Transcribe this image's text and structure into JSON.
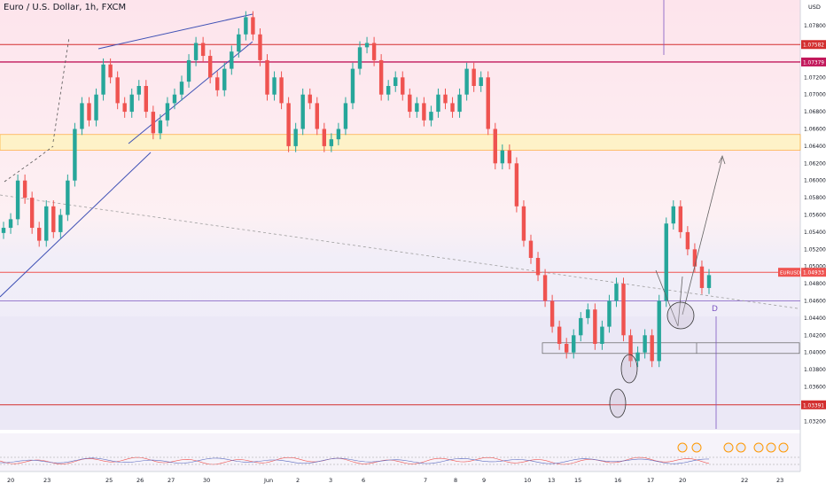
{
  "header": {
    "title": "Euro / U.S. Dollar, 1h, FXCM",
    "currency": "USD"
  },
  "colors": {
    "up": "#26a69a",
    "down": "#ef5350",
    "resistance_line": "#c2185b",
    "support_zone": "#fff3c4",
    "trendline": "#3f51b5",
    "zone_fill": "#ede7f6"
  },
  "chart_data": {
    "type": "candlestick",
    "symbol": "EURUSD",
    "timeframe": "1h",
    "ylim": [
      1.031,
      1.081
    ],
    "y_ticks": [
      "1.07800",
      "1.07600",
      "1.07400",
      "1.07200",
      "1.07000",
      "1.06800",
      "1.06600",
      "1.06400",
      "1.06200",
      "1.06000",
      "1.05800",
      "1.05600",
      "1.05400",
      "1.05200",
      "1.05000",
      "1.04800",
      "1.04600",
      "1.04400",
      "1.04200",
      "1.04000",
      "1.03800",
      "1.03600",
      "1.03400",
      "1.03200"
    ],
    "x_ticks": [
      "20",
      "23",
      "25",
      "26",
      "27",
      "30",
      "Jun",
      "2",
      "3",
      "6",
      "7",
      "8",
      "9",
      "10",
      "13",
      "15",
      "16",
      "17",
      "20",
      "22",
      "23"
    ],
    "price_labels": [
      {
        "text": "1.07582",
        "value": 1.07582,
        "color": "#d32f2f"
      },
      {
        "text": "1.07379",
        "value": 1.07379,
        "color": "#c2185b"
      },
      {
        "text": "EURUSD",
        "value": 1.04933,
        "color": "#ef5350"
      },
      {
        "text": "1.04933",
        "value": 1.04933,
        "color": "#ef5350"
      },
      {
        "text": "1.03391",
        "value": 1.03391,
        "color": "#d32f2f"
      }
    ],
    "annotation": {
      "text": "D"
    },
    "close": [
      1.0545,
      1.0555,
      1.06,
      1.058,
      1.0545,
      1.053,
      1.057,
      1.054,
      1.056,
      1.06,
      1.066,
      1.069,
      1.067,
      1.07,
      1.0735,
      1.072,
      1.069,
      1.068,
      1.07,
      1.071,
      1.068,
      1.0655,
      1.067,
      1.069,
      1.07,
      1.0715,
      1.074,
      1.076,
      1.0745,
      1.072,
      1.0705,
      1.073,
      1.075,
      1.077,
      1.079,
      1.077,
      1.074,
      1.07,
      1.072,
      1.069,
      1.064,
      1.066,
      1.07,
      1.069,
      1.066,
      1.064,
      1.0648,
      1.066,
      1.069,
      1.073,
      1.0755,
      1.076,
      1.074,
      1.07,
      1.071,
      1.072,
      1.07,
      1.068,
      1.069,
      1.067,
      1.068,
      1.07,
      1.069,
      1.068,
      1.07,
      1.073,
      1.071,
      1.072,
      1.066,
      1.062,
      1.0635,
      1.062,
      1.057,
      1.053,
      1.051,
      1.049,
      1.046,
      1.043,
      1.041,
      1.04,
      1.042,
      1.044,
      1.045,
      1.041,
      1.043,
      1.046,
      1.048,
      1.042,
      1.039,
      1.04,
      1.042,
      1.039,
      1.046,
      1.055,
      1.057,
      1.054,
      1.052,
      1.05,
      1.0475,
      1.049
    ],
    "zones": {
      "resistance_band": [
        1.06354,
        1.06535
      ],
      "demand_box": [
        1.0396,
        1.0403
      ]
    },
    "grid": false
  }
}
